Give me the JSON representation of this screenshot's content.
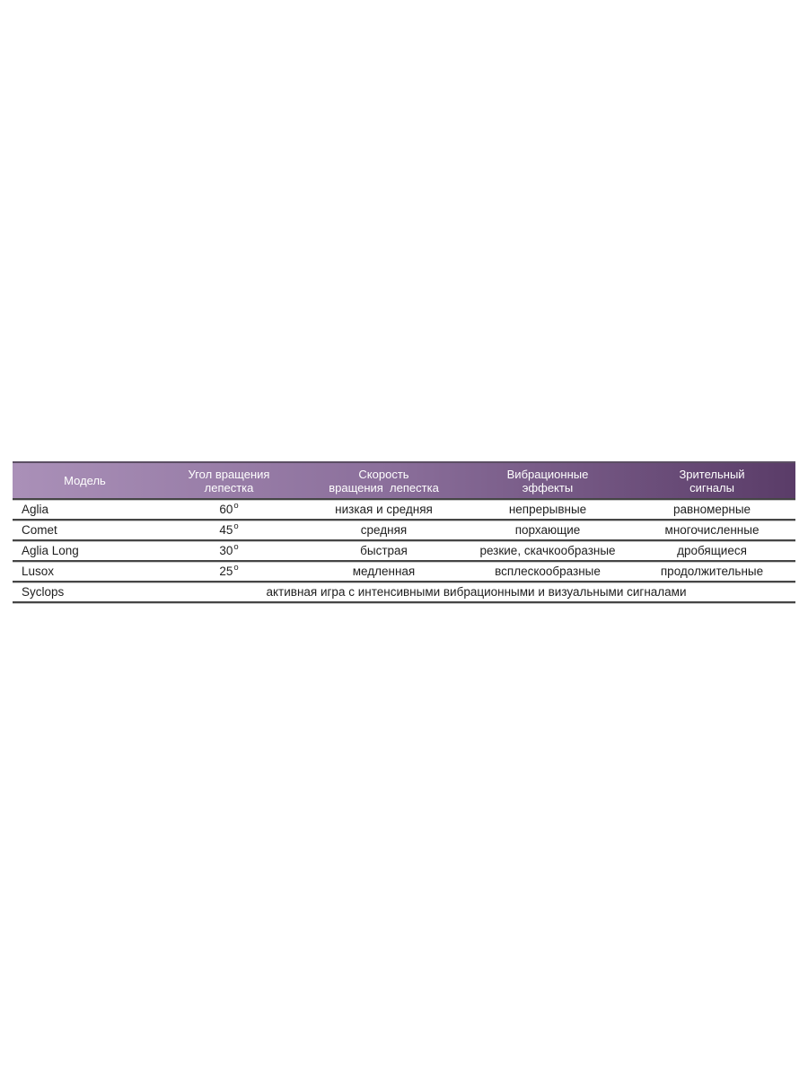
{
  "table": {
    "degree_symbol": "o",
    "header": {
      "columns": [
        {
          "line1": "Модель"
        },
        {
          "line1": "Угол вращения",
          "line2": "лепестка"
        },
        {
          "line1": "Скорость",
          "line2": "вращения  лепестка"
        },
        {
          "line1": "Вибрационные",
          "line2": "эффекты"
        },
        {
          "line1": "Зрительный",
          "line2": "сигналы"
        }
      ],
      "gradient_left": "#aa90b8",
      "gradient_right": "#5a3c68",
      "text_color": "#ffffff"
    },
    "rows": [
      {
        "model": "Aglia",
        "angle": "60",
        "speed": "низкая и средняя",
        "vibration": "непрерывные",
        "signals": "равномерные"
      },
      {
        "model": "Comet",
        "angle": "45",
        "speed": "средняя",
        "vibration": "порхающие",
        "signals": "многочисленные"
      },
      {
        "model": "Aglia Long",
        "angle": "30",
        "speed": "быстрая",
        "vibration": "резкие, скачкообразные",
        "signals": "дробящиеся"
      },
      {
        "model": "Lusox",
        "angle": "25",
        "speed": "медленная",
        "vibration": "всплескообразные",
        "signals": "продолжительные"
      }
    ],
    "footer_row": {
      "model": "Syclops",
      "description": "активная игра с интенсивными вибрационными и визуальными сигналами"
    }
  }
}
